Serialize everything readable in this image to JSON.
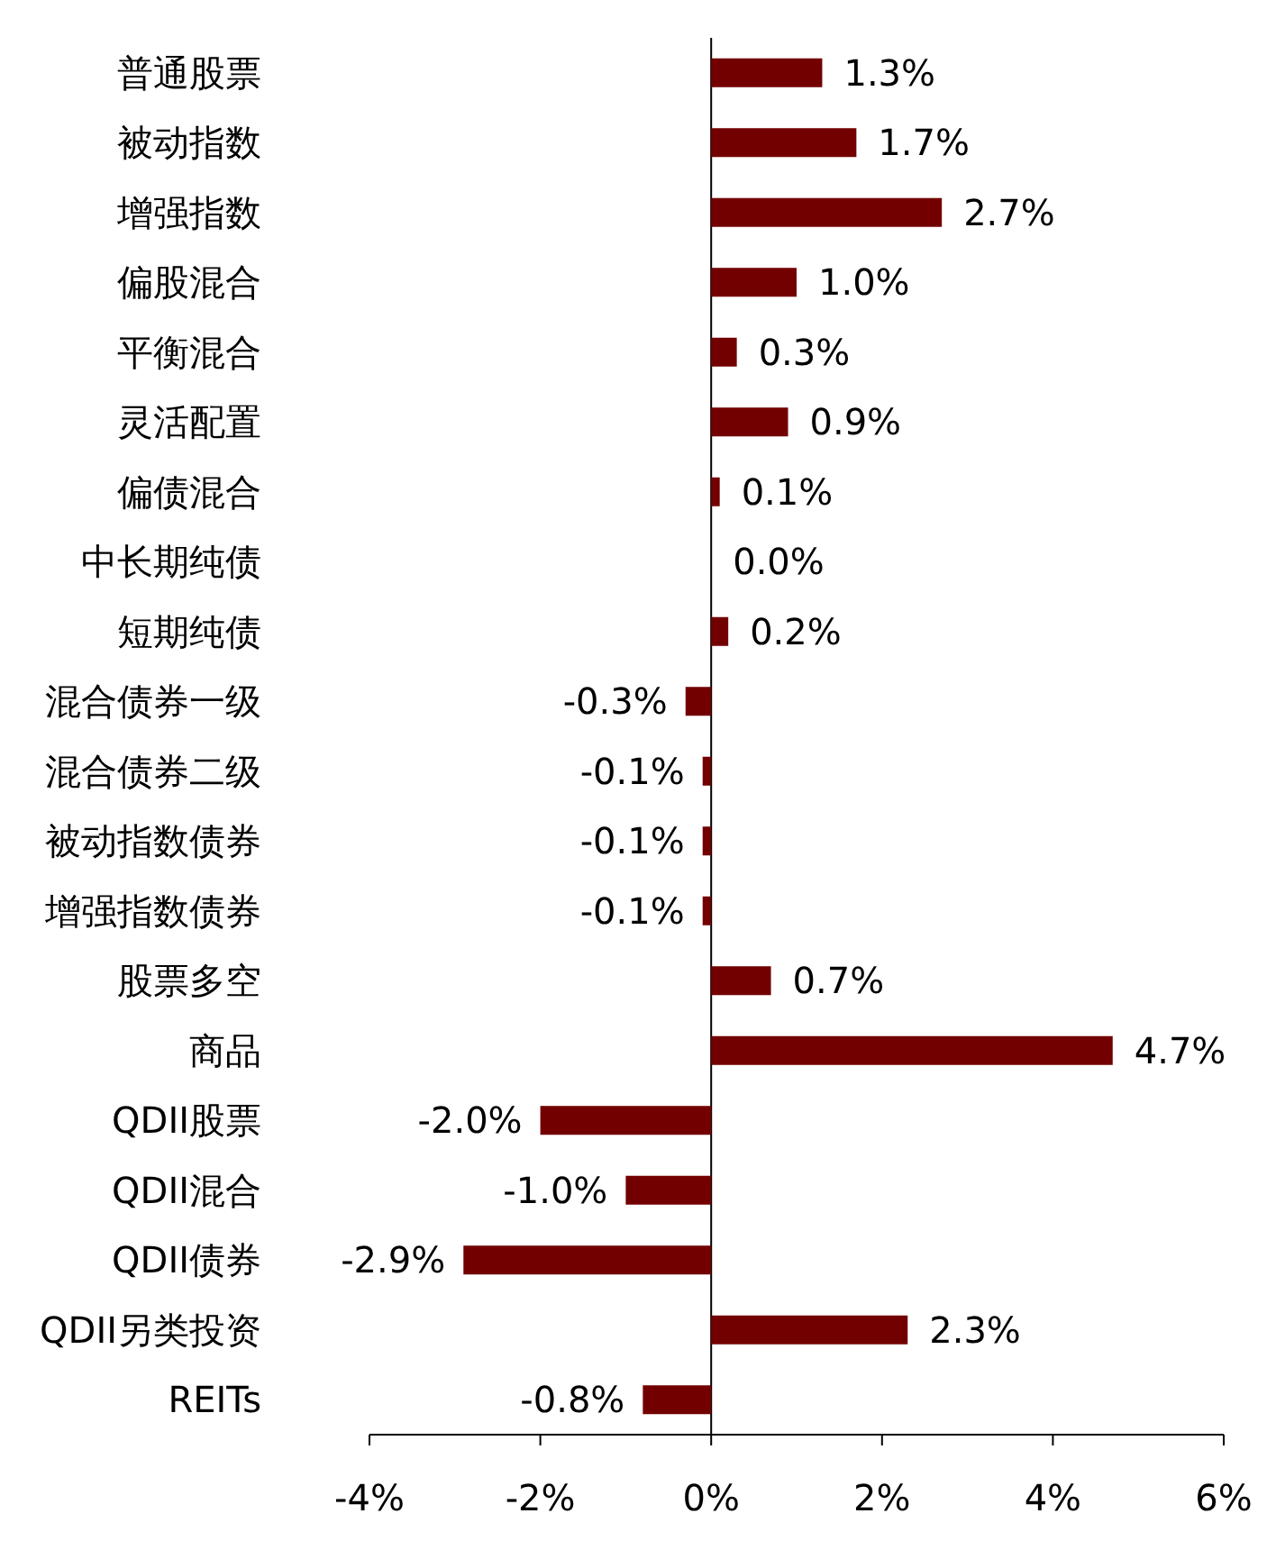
{
  "chart_data": {
    "type": "bar",
    "orientation": "horizontal",
    "categories": [
      "普通股票",
      "被动指数",
      "增强指数",
      "偏股混合",
      "平衡混合",
      "灵活配置",
      "偏债混合",
      "中长期纯债",
      "短期纯债",
      "混合债券一级",
      "混合债券二级",
      "被动指数债券",
      "增强指数债券",
      "股票多空",
      "商品",
      "QDII股票",
      "QDII混合",
      "QDII债券",
      "QDII另类投资",
      "REITs"
    ],
    "values": [
      1.3,
      1.7,
      2.7,
      1.0,
      0.3,
      0.9,
      0.1,
      0.0,
      0.2,
      -0.3,
      -0.1,
      -0.1,
      -0.1,
      0.7,
      4.7,
      -2.0,
      -1.0,
      -2.9,
      2.3,
      -0.8
    ],
    "value_labels": [
      "1.3%",
      "1.7%",
      "2.7%",
      "1.0%",
      "0.3%",
      "0.9%",
      "0.1%",
      "0.0%",
      "0.2%",
      "-0.3%",
      "-0.1%",
      "-0.1%",
      "-0.1%",
      "0.7%",
      "4.7%",
      "-2.0%",
      "-1.0%",
      "-2.9%",
      "2.3%",
      "-0.8%"
    ],
    "color": "#730000",
    "xlim": [
      -4,
      6
    ],
    "xticks": [
      {
        "value": -4,
        "label": "-4%"
      },
      {
        "value": -2,
        "label": "-2%"
      },
      {
        "value": 0,
        "label": "0%"
      },
      {
        "value": 2,
        "label": "2%"
      },
      {
        "value": 4,
        "label": "4%"
      },
      {
        "value": 6,
        "label": "6%"
      }
    ]
  }
}
